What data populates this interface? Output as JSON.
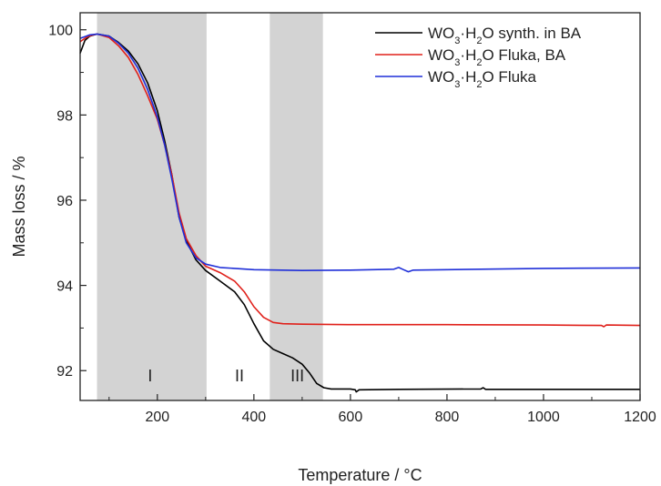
{
  "chart_data": {
    "type": "line",
    "title": "",
    "xlabel": "Temperature / °C",
    "ylabel": "Mass loss / %",
    "xlim": [
      40,
      1200
    ],
    "ylim": [
      91.3,
      100.4
    ],
    "xticks": [
      200,
      400,
      600,
      800,
      1000,
      1200
    ],
    "yticks": [
      92,
      94,
      96,
      98,
      100
    ],
    "grid": false,
    "legend_position": "top-right",
    "regions": [
      {
        "label": "I",
        "x_start": 75,
        "x_end": 302,
        "label_x": 185,
        "color": "#d3d3d3"
      },
      {
        "label": "II",
        "x_start": null,
        "x_end": null,
        "label_x": 370,
        "color": null
      },
      {
        "label": "III",
        "x_start": 433,
        "x_end": 543,
        "label_x": 490,
        "color": "#d3d3d3"
      }
    ],
    "region_label_y": 91.75,
    "series": [
      {
        "name": "WO3·H2O synth. in BA",
        "legend_parts": [
          "WO",
          "3",
          "·H",
          "2",
          "O synth. in BA"
        ],
        "color": "#000000",
        "points": [
          [
            40,
            99.45
          ],
          [
            50,
            99.75
          ],
          [
            60,
            99.85
          ],
          [
            75,
            99.9
          ],
          [
            100,
            99.85
          ],
          [
            120,
            99.7
          ],
          [
            140,
            99.5
          ],
          [
            160,
            99.2
          ],
          [
            180,
            98.75
          ],
          [
            200,
            98.1
          ],
          [
            215,
            97.4
          ],
          [
            230,
            96.6
          ],
          [
            245,
            95.6
          ],
          [
            260,
            95.05
          ],
          [
            280,
            94.6
          ],
          [
            300,
            94.35
          ],
          [
            330,
            94.1
          ],
          [
            360,
            93.85
          ],
          [
            380,
            93.55
          ],
          [
            400,
            93.1
          ],
          [
            420,
            92.7
          ],
          [
            440,
            92.5
          ],
          [
            460,
            92.4
          ],
          [
            480,
            92.3
          ],
          [
            500,
            92.15
          ],
          [
            515,
            91.95
          ],
          [
            530,
            91.7
          ],
          [
            545,
            91.6
          ],
          [
            560,
            91.57
          ],
          [
            600,
            91.57
          ],
          [
            610,
            91.55
          ],
          [
            612,
            91.5
          ],
          [
            618,
            91.55
          ],
          [
            700,
            91.56
          ],
          [
            870,
            91.57
          ],
          [
            875,
            91.6
          ],
          [
            880,
            91.56
          ],
          [
            1000,
            91.56
          ],
          [
            1130,
            91.56
          ],
          [
            1200,
            91.56
          ]
        ]
      },
      {
        "name": "WO3·H2O Fluka, BA",
        "legend_parts": [
          "WO",
          "3",
          "·H",
          "2",
          "O Fluka, BA"
        ],
        "color": "#e0201a",
        "points": [
          [
            40,
            99.72
          ],
          [
            50,
            99.8
          ],
          [
            60,
            99.86
          ],
          [
            75,
            99.9
          ],
          [
            100,
            99.82
          ],
          [
            120,
            99.62
          ],
          [
            140,
            99.35
          ],
          [
            160,
            98.95
          ],
          [
            180,
            98.45
          ],
          [
            200,
            97.9
          ],
          [
            215,
            97.3
          ],
          [
            230,
            96.6
          ],
          [
            245,
            95.7
          ],
          [
            260,
            95.1
          ],
          [
            280,
            94.7
          ],
          [
            300,
            94.45
          ],
          [
            330,
            94.3
          ],
          [
            360,
            94.1
          ],
          [
            380,
            93.85
          ],
          [
            400,
            93.5
          ],
          [
            420,
            93.25
          ],
          [
            440,
            93.13
          ],
          [
            460,
            93.1
          ],
          [
            500,
            93.09
          ],
          [
            600,
            93.08
          ],
          [
            800,
            93.08
          ],
          [
            1000,
            93.07
          ],
          [
            1120,
            93.06
          ],
          [
            1125,
            93.03
          ],
          [
            1130,
            93.07
          ],
          [
            1200,
            93.06
          ]
        ]
      },
      {
        "name": "WO3·H2O Fluka",
        "legend_parts": [
          "WO",
          "3",
          "·H",
          "2",
          "O Fluka"
        ],
        "color": "#1f2fd8",
        "points": [
          [
            40,
            99.8
          ],
          [
            50,
            99.84
          ],
          [
            60,
            99.88
          ],
          [
            75,
            99.9
          ],
          [
            100,
            99.85
          ],
          [
            120,
            99.68
          ],
          [
            140,
            99.45
          ],
          [
            160,
            99.1
          ],
          [
            180,
            98.6
          ],
          [
            200,
            97.95
          ],
          [
            215,
            97.3
          ],
          [
            230,
            96.5
          ],
          [
            245,
            95.6
          ],
          [
            260,
            95.0
          ],
          [
            280,
            94.65
          ],
          [
            300,
            94.5
          ],
          [
            330,
            94.42
          ],
          [
            400,
            94.37
          ],
          [
            500,
            94.35
          ],
          [
            600,
            94.36
          ],
          [
            690,
            94.38
          ],
          [
            700,
            94.42
          ],
          [
            710,
            94.37
          ],
          [
            720,
            94.32
          ],
          [
            730,
            94.36
          ],
          [
            800,
            94.37
          ],
          [
            1000,
            94.4
          ],
          [
            1200,
            94.41
          ]
        ]
      }
    ]
  }
}
